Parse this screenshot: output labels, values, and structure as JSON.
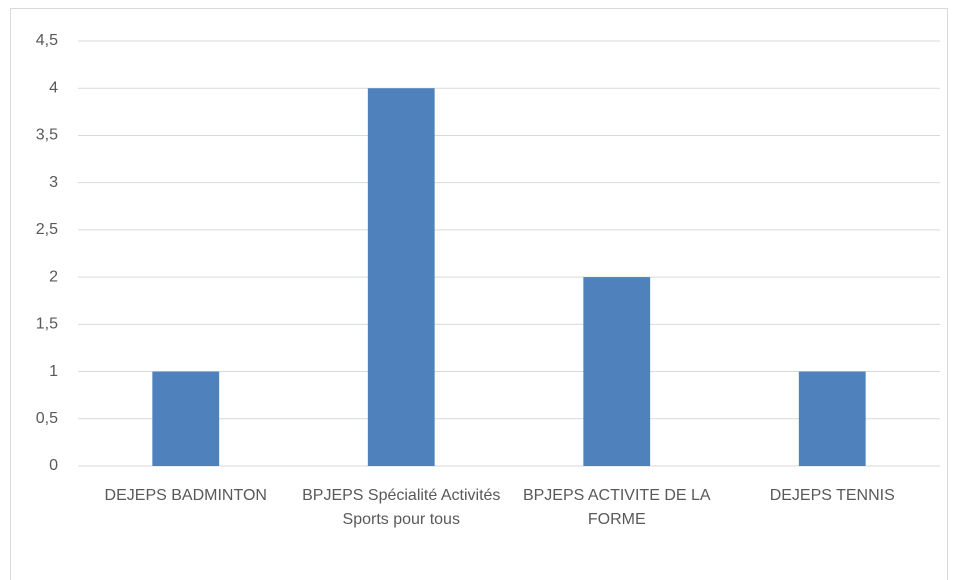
{
  "chart_data": {
    "type": "bar",
    "categories": [
      "DEJEPS BADMINTON",
      "BPJEPS Spécialité Activités Sports pour tous",
      "BPJEPS ACTIVITE DE LA FORME",
      "DEJEPS TENNIS"
    ],
    "values": [
      1,
      4,
      2,
      1
    ],
    "color": "#4f81bd",
    "ylim": [
      0,
      4.5
    ],
    "yticks": [
      0,
      {
        "value": 0.5,
        "label": "0,5"
      },
      1,
      {
        "value": 1.5,
        "label": "1,5"
      },
      2,
      {
        "value": 2.5,
        "label": "2,5"
      },
      3,
      {
        "value": 3.5,
        "label": "3,5"
      },
      4,
      {
        "value": 4.5,
        "label": "4,5"
      }
    ],
    "grid": true
  }
}
